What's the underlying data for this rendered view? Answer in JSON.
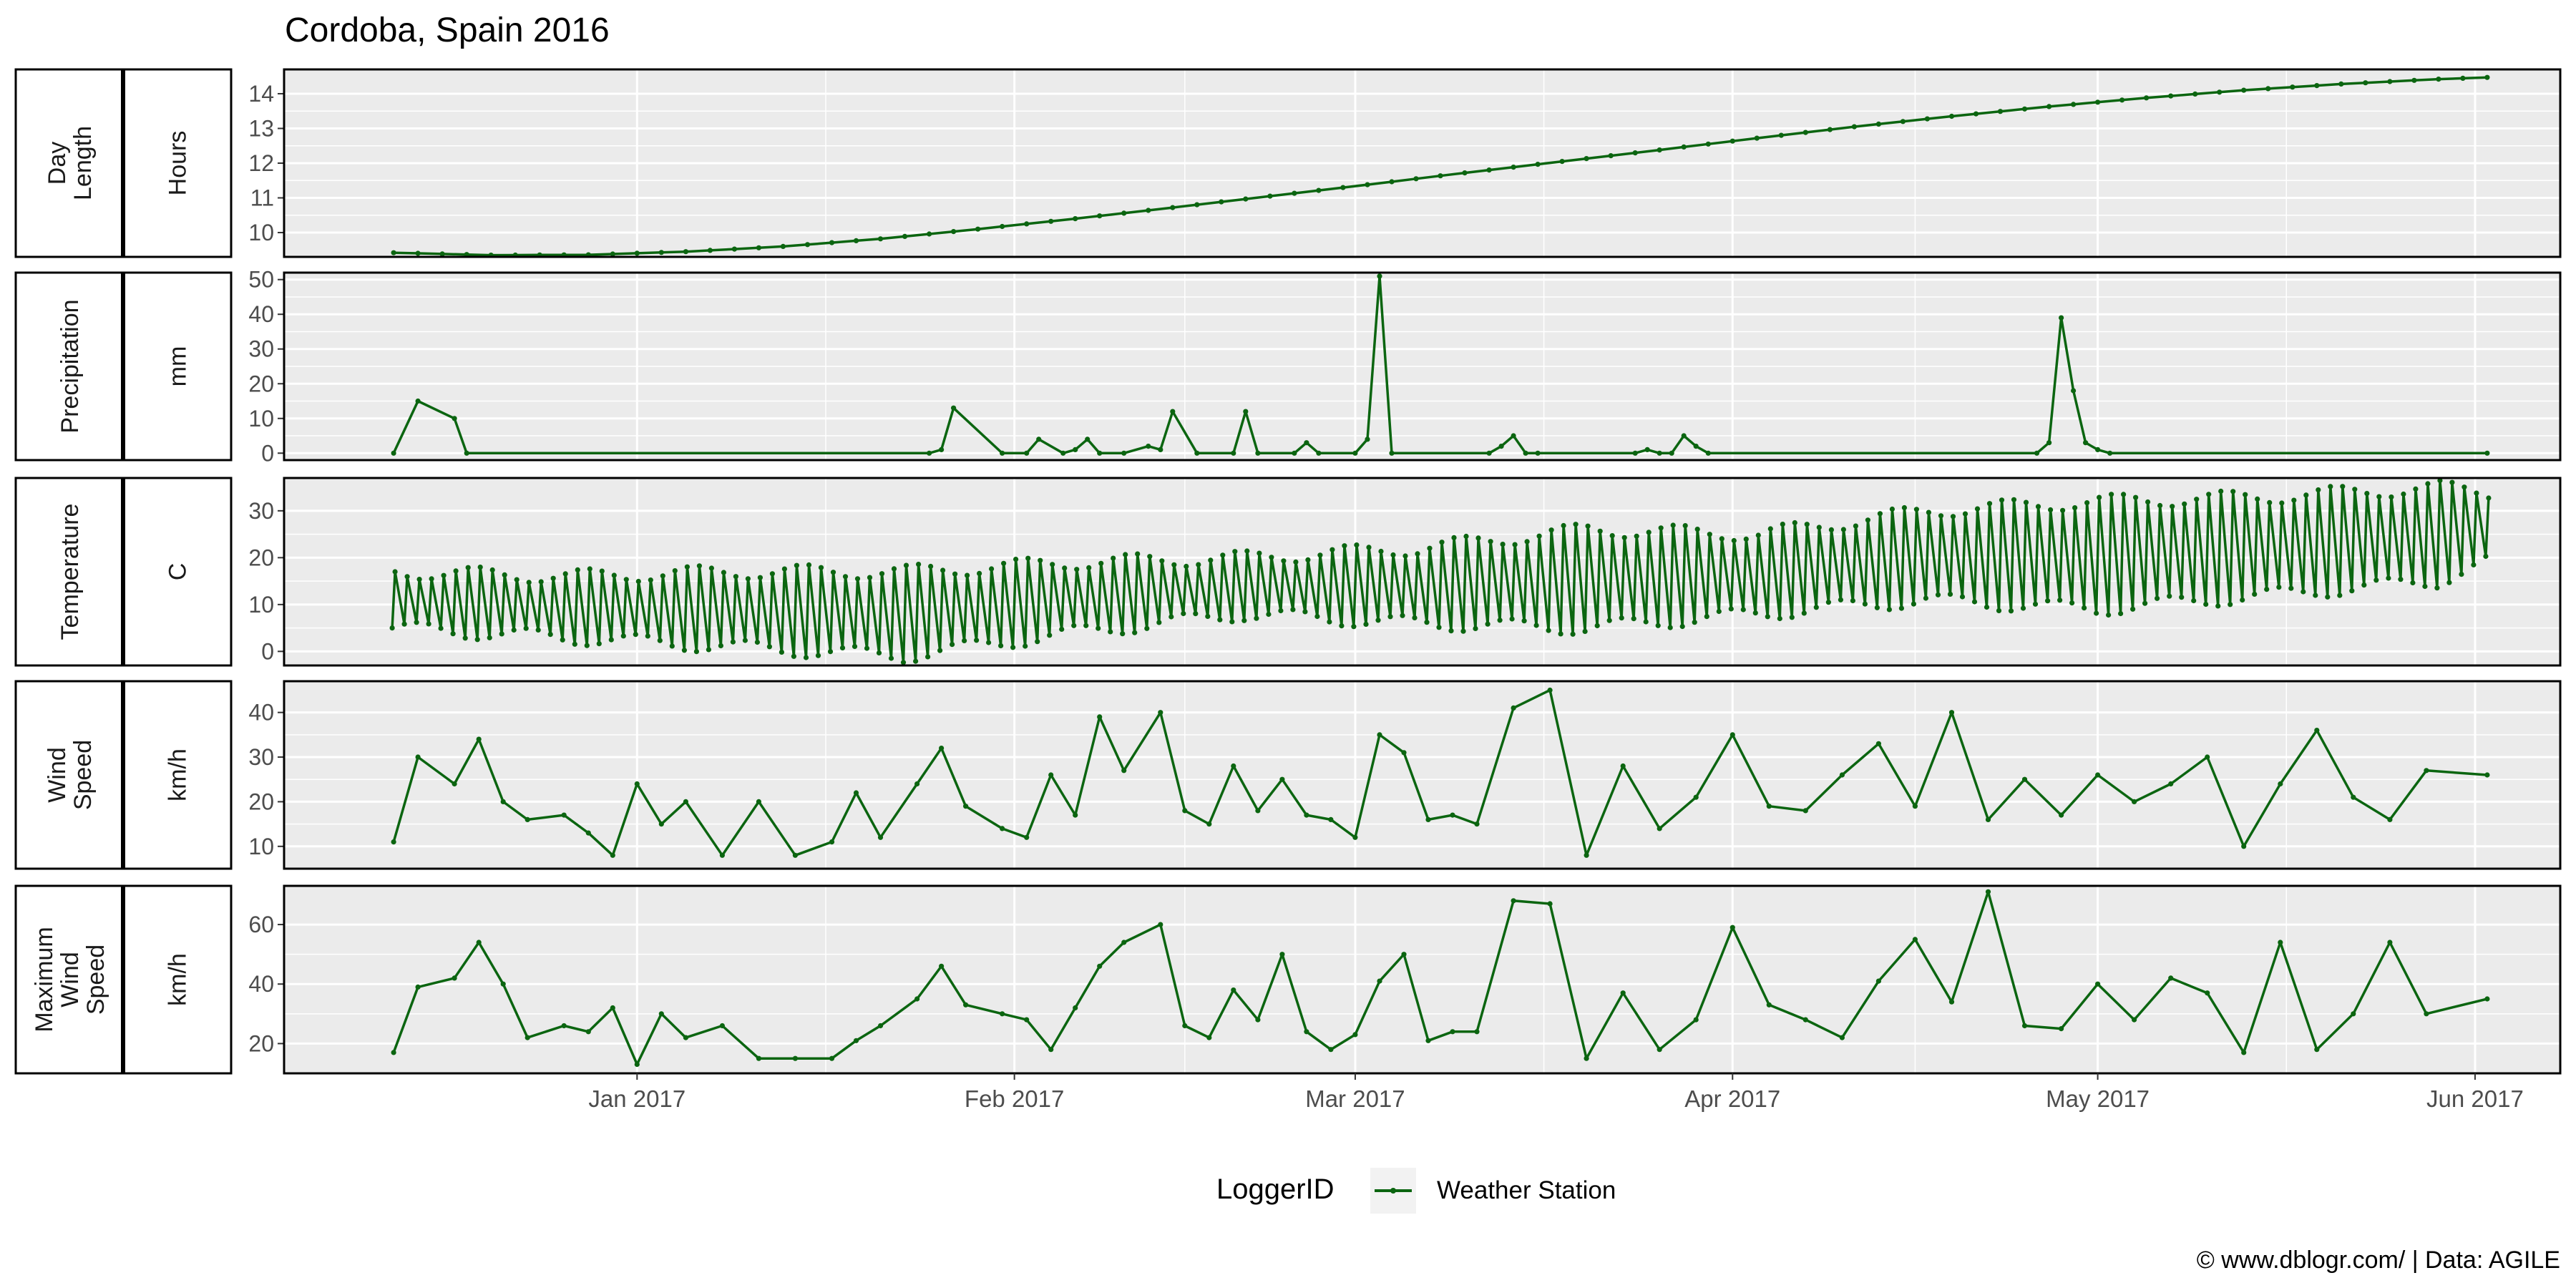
{
  "title": "Cordoba, Spain 2016",
  "caption": "© www.dblogr.com/  |  Data: AGILE",
  "legend": {
    "title": "LoggerID",
    "entries": [
      "Weather Station"
    ],
    "position": "bottom"
  },
  "colors": {
    "series": "#0B6510",
    "panel_bg": "#EBEBEB",
    "grid": "#FFFFFF",
    "axis_text": "#4D4D4D",
    "border": "#000000"
  },
  "x_axis": {
    "range": [
      "2016-12-03",
      "2017-06-08"
    ],
    "ticks": [
      {
        "date": "2017-01-01",
        "label": "Jan 2017"
      },
      {
        "date": "2017-02-01",
        "label": "Feb 2017"
      },
      {
        "date": "2017-03-01",
        "label": "Mar 2017"
      },
      {
        "date": "2017-04-01",
        "label": "Apr 2017"
      },
      {
        "date": "2017-05-01",
        "label": "May 2017"
      },
      {
        "date": "2017-06-01",
        "label": "Jun 2017"
      }
    ]
  },
  "chart_data": [
    {
      "type": "line",
      "panel": "day-length",
      "strip_name": [
        "Day",
        "Length"
      ],
      "unit": "Hours",
      "ylim": [
        9.3,
        14.7
      ],
      "yticks": [
        10,
        11,
        12,
        13,
        14
      ],
      "grid": true,
      "series": [
        {
          "name": "Weather Station",
          "x": [
            "2016-12-12",
            "2016-12-20",
            "2016-12-28",
            "2017-01-05",
            "2017-01-13",
            "2017-01-21",
            "2017-01-29",
            "2017-02-06",
            "2017-02-14",
            "2017-02-22",
            "2017-03-02",
            "2017-03-10",
            "2017-03-18",
            "2017-03-26",
            "2017-04-03",
            "2017-04-11",
            "2017-04-19",
            "2017-04-27",
            "2017-05-05",
            "2017-05-13",
            "2017-05-21",
            "2017-05-29",
            "2017-06-02"
          ],
          "values": [
            9.42,
            9.35,
            9.36,
            9.45,
            9.6,
            9.82,
            10.1,
            10.4,
            10.72,
            11.05,
            11.38,
            11.72,
            12.05,
            12.38,
            12.72,
            13.05,
            13.35,
            13.63,
            13.88,
            14.1,
            14.28,
            14.42,
            14.47
          ]
        }
      ]
    },
    {
      "type": "line",
      "panel": "precipitation",
      "strip_name": [
        "Precipitation"
      ],
      "unit": "mm",
      "ylim": [
        -2,
        52
      ],
      "yticks": [
        0,
        10,
        20,
        30,
        40,
        50
      ],
      "grid": true,
      "series": [
        {
          "name": "Weather Station",
          "x": [
            "2016-12-12",
            "2016-12-14",
            "2016-12-17",
            "2016-12-18",
            "2017-01-25",
            "2017-01-26",
            "2017-01-27",
            "2017-01-31",
            "2017-02-02",
            "2017-02-03",
            "2017-02-05",
            "2017-02-06",
            "2017-02-07",
            "2017-02-08",
            "2017-02-10",
            "2017-02-12",
            "2017-02-13",
            "2017-02-14",
            "2017-02-16",
            "2017-02-19",
            "2017-02-20",
            "2017-02-21",
            "2017-02-24",
            "2017-02-25",
            "2017-02-26",
            "2017-03-01",
            "2017-03-02",
            "2017-03-03",
            "2017-03-04",
            "2017-03-12",
            "2017-03-13",
            "2017-03-14",
            "2017-03-15",
            "2017-03-16",
            "2017-03-24",
            "2017-03-25",
            "2017-03-26",
            "2017-03-27",
            "2017-03-28",
            "2017-03-29",
            "2017-03-30",
            "2017-04-26",
            "2017-04-27",
            "2017-04-28",
            "2017-04-29",
            "2017-04-30",
            "2017-05-01",
            "2017-05-02",
            "2017-06-02"
          ],
          "values": [
            0,
            15,
            10,
            0,
            0,
            1,
            13,
            0,
            0,
            4,
            0,
            1,
            4,
            0,
            0,
            2,
            1,
            12,
            0,
            0,
            12,
            0,
            0,
            3,
            0,
            0,
            4,
            51,
            0,
            0,
            2,
            5,
            0,
            0,
            0,
            1,
            0,
            0,
            5,
            2,
            0,
            0,
            3,
            39,
            18,
            3,
            1,
            0,
            0
          ]
        }
      ]
    },
    {
      "type": "line",
      "panel": "temperature",
      "strip_name": [
        "Temperature"
      ],
      "unit": "C",
      "ylim": [
        -3,
        37
      ],
      "yticks": [
        0,
        10,
        20,
        30
      ],
      "grid": true,
      "note": "daily alternating minimum / maximum readings",
      "max_series": {
        "x": [
          "2016-12-12",
          "2016-12-26",
          "2017-01-09",
          "2017-01-23",
          "2017-02-06",
          "2017-02-20",
          "2017-03-06",
          "2017-03-20",
          "2017-04-03",
          "2017-04-17",
          "2017-05-01",
          "2017-05-15",
          "2017-05-29",
          "2017-06-02"
        ],
        "values": [
          17,
          16,
          17,
          17,
          19,
          20,
          22,
          26,
          25,
          30,
          32,
          33,
          35,
          34
        ]
      },
      "min_series": {
        "x": [
          "2016-12-12",
          "2016-12-26",
          "2017-01-09",
          "2017-01-23",
          "2017-02-06",
          "2017-02-20",
          "2017-03-06",
          "2017-03-20",
          "2017-04-03",
          "2017-04-17",
          "2017-05-01",
          "2017-05-15",
          "2017-05-29",
          "2017-06-02"
        ],
        "values": [
          5,
          3,
          1,
          -1,
          4,
          8,
          6,
          5,
          8,
          11,
          9,
          12,
          15,
          19
        ]
      }
    },
    {
      "type": "line",
      "panel": "wind-speed",
      "strip_name": [
        "Wind",
        "Speed"
      ],
      "unit": "km/h",
      "ylim": [
        5,
        47
      ],
      "yticks": [
        10,
        20,
        30,
        40
      ],
      "grid": true,
      "series": [
        {
          "name": "Weather Station",
          "x": [
            "2016-12-12",
            "2016-12-14",
            "2016-12-17",
            "2016-12-19",
            "2016-12-21",
            "2016-12-23",
            "2016-12-26",
            "2016-12-28",
            "2016-12-30",
            "2017-01-01",
            "2017-01-03",
            "2017-01-05",
            "2017-01-08",
            "2017-01-11",
            "2017-01-14",
            "2017-01-17",
            "2017-01-19",
            "2017-01-21",
            "2017-01-24",
            "2017-01-26",
            "2017-01-28",
            "2017-01-31",
            "2017-02-02",
            "2017-02-04",
            "2017-02-06",
            "2017-02-08",
            "2017-02-10",
            "2017-02-13",
            "2017-02-15",
            "2017-02-17",
            "2017-02-19",
            "2017-02-21",
            "2017-02-23",
            "2017-02-25",
            "2017-02-27",
            "2017-03-01",
            "2017-03-03",
            "2017-03-05",
            "2017-03-07",
            "2017-03-09",
            "2017-03-11",
            "2017-03-14",
            "2017-03-17",
            "2017-03-20",
            "2017-03-23",
            "2017-03-26",
            "2017-03-29",
            "2017-04-01",
            "2017-04-04",
            "2017-04-07",
            "2017-04-10",
            "2017-04-13",
            "2017-04-16",
            "2017-04-19",
            "2017-04-22",
            "2017-04-25",
            "2017-04-28",
            "2017-05-01",
            "2017-05-04",
            "2017-05-07",
            "2017-05-10",
            "2017-05-13",
            "2017-05-16",
            "2017-05-19",
            "2017-05-22",
            "2017-05-25",
            "2017-05-28",
            "2017-06-02"
          ],
          "values": [
            11,
            30,
            24,
            34,
            20,
            16,
            17,
            13,
            8,
            24,
            15,
            20,
            8,
            20,
            8,
            11,
            22,
            12,
            24,
            32,
            19,
            14,
            12,
            26,
            17,
            39,
            27,
            40,
            18,
            15,
            28,
            18,
            25,
            17,
            16,
            12,
            35,
            31,
            16,
            17,
            15,
            41,
            45,
            8,
            28,
            14,
            21,
            35,
            19,
            18,
            26,
            33,
            19,
            40,
            16,
            25,
            17,
            26,
            20,
            24,
            30,
            10,
            24,
            36,
            21,
            16,
            27,
            26
          ]
        }
      ]
    },
    {
      "type": "line",
      "panel": "maximum-wind-speed",
      "strip_name": [
        "Maximum",
        "Wind",
        "Speed"
      ],
      "unit": "km/h",
      "ylim": [
        10,
        73
      ],
      "yticks": [
        20,
        40,
        60
      ],
      "grid": true,
      "series": [
        {
          "name": "Weather Station",
          "x": [
            "2016-12-12",
            "2016-12-14",
            "2016-12-17",
            "2016-12-19",
            "2016-12-21",
            "2016-12-23",
            "2016-12-26",
            "2016-12-28",
            "2016-12-30",
            "2017-01-01",
            "2017-01-03",
            "2017-01-05",
            "2017-01-08",
            "2017-01-11",
            "2017-01-14",
            "2017-01-17",
            "2017-01-19",
            "2017-01-21",
            "2017-01-24",
            "2017-01-26",
            "2017-01-28",
            "2017-01-31",
            "2017-02-02",
            "2017-02-04",
            "2017-02-06",
            "2017-02-08",
            "2017-02-10",
            "2017-02-13",
            "2017-02-15",
            "2017-02-17",
            "2017-02-19",
            "2017-02-21",
            "2017-02-23",
            "2017-02-25",
            "2017-02-27",
            "2017-03-01",
            "2017-03-03",
            "2017-03-05",
            "2017-03-07",
            "2017-03-09",
            "2017-03-11",
            "2017-03-14",
            "2017-03-17",
            "2017-03-20",
            "2017-03-23",
            "2017-03-26",
            "2017-03-29",
            "2017-04-01",
            "2017-04-04",
            "2017-04-07",
            "2017-04-10",
            "2017-04-13",
            "2017-04-16",
            "2017-04-19",
            "2017-04-22",
            "2017-04-25",
            "2017-04-28",
            "2017-05-01",
            "2017-05-04",
            "2017-05-07",
            "2017-05-10",
            "2017-05-13",
            "2017-05-16",
            "2017-05-19",
            "2017-05-22",
            "2017-05-25",
            "2017-05-28",
            "2017-06-02"
          ],
          "values": [
            17,
            39,
            42,
            54,
            40,
            22,
            26,
            24,
            32,
            13,
            30,
            22,
            26,
            15,
            15,
            15,
            21,
            26,
            35,
            46,
            33,
            30,
            28,
            18,
            32,
            46,
            54,
            60,
            26,
            22,
            38,
            28,
            50,
            24,
            18,
            23,
            41,
            50,
            21,
            24,
            24,
            68,
            67,
            15,
            37,
            18,
            28,
            59,
            33,
            28,
            22,
            41,
            55,
            34,
            71,
            26,
            25,
            40,
            28,
            42,
            37,
            17,
            54,
            18,
            30,
            54,
            30,
            35
          ]
        }
      ]
    }
  ]
}
